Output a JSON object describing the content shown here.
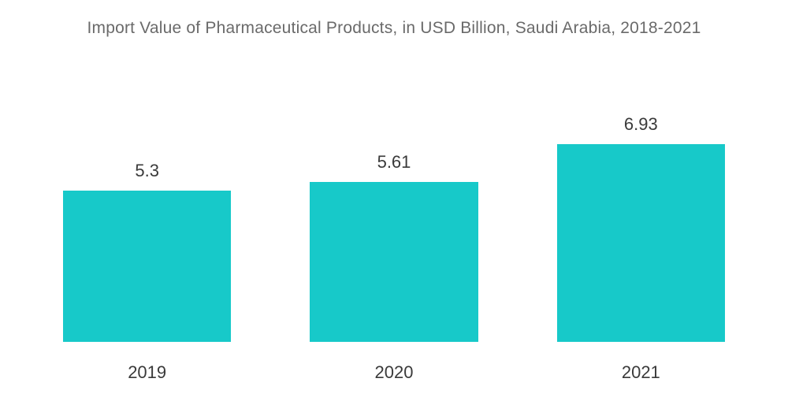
{
  "chart": {
    "type": "bar",
    "title": "Import Value of Pharmaceutical Products, in USD Billion, Saudi Arabia, 2018-2021",
    "title_fontsize": 21,
    "title_color": "#6a6a6a",
    "categories": [
      "2019",
      "2020",
      "2021"
    ],
    "values": [
      5.3,
      5.61,
      6.93
    ],
    "value_labels": [
      "5.3",
      "5.61",
      "6.93"
    ],
    "bar_colors": [
      "#17c9c9",
      "#17c9c9",
      "#17c9c9"
    ],
    "background_color": "#ffffff",
    "ylim": [
      0,
      8
    ],
    "bar_width_pct": 68,
    "value_label_fontsize": 22,
    "value_label_color": "#3a3a3a",
    "category_label_fontsize": 22,
    "category_label_color": "#3a3a3a",
    "show_axes": false,
    "show_grid": false
  }
}
